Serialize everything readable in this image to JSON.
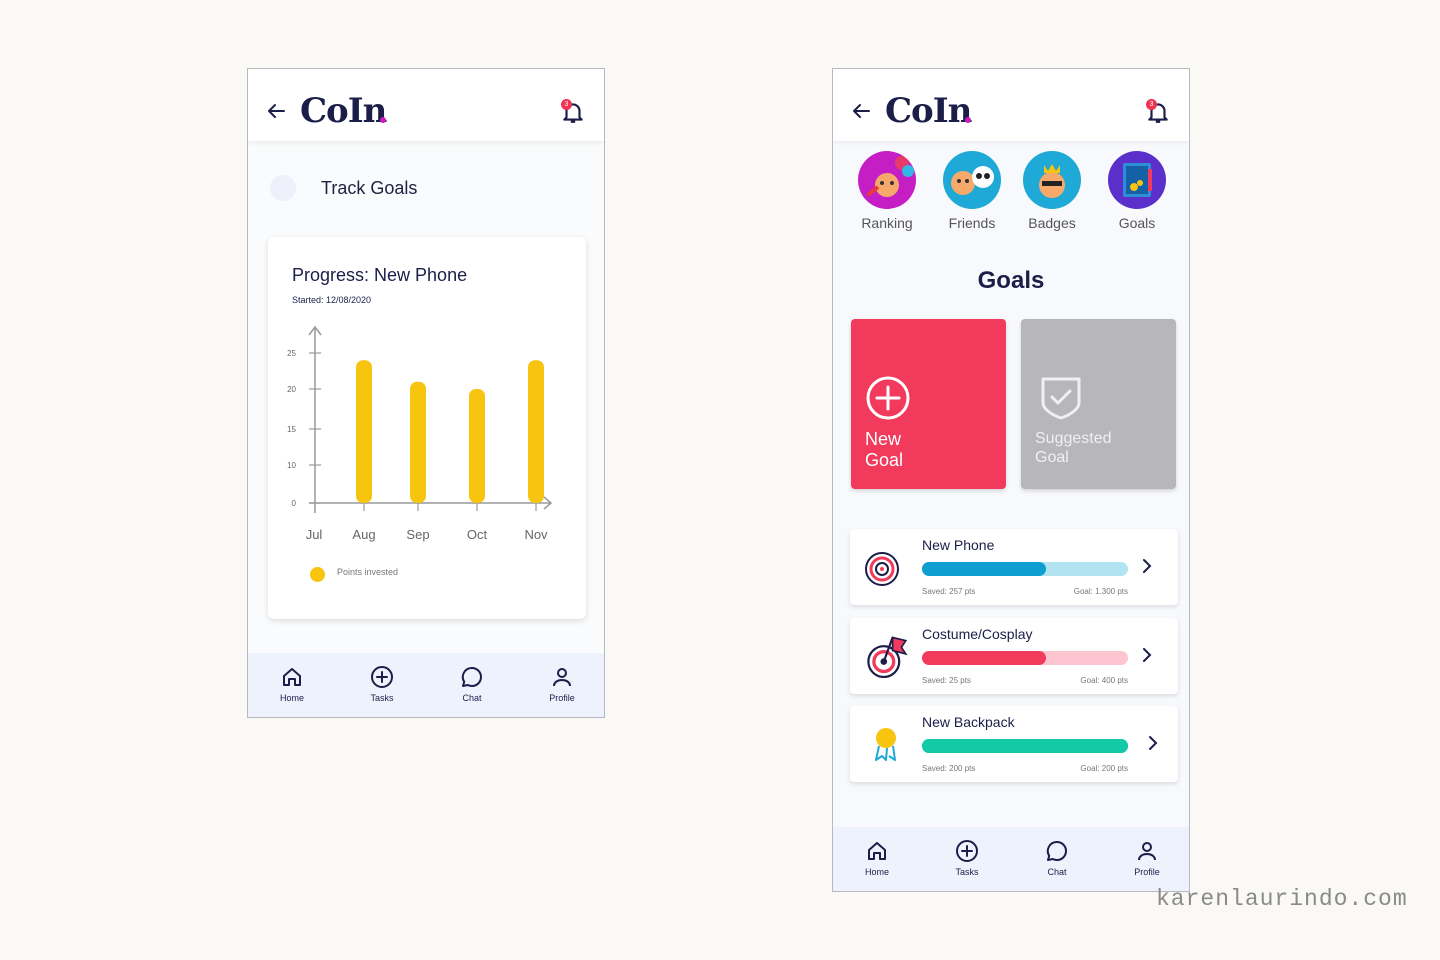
{
  "brand": {
    "logo_text": "CoIn",
    "notification_count": "3"
  },
  "screen_track": {
    "section_title": "Track Goals",
    "chart_title": "Progress: New Phone",
    "chart_subtitle": "Started: 12/08/2020",
    "legend_label": "Points invested"
  },
  "chart_data": {
    "type": "bar",
    "categories": [
      "Jul",
      "Aug",
      "Sep",
      "Oct",
      "Nov"
    ],
    "series": [
      {
        "name": "Points invested",
        "values": [
          0,
          24,
          21,
          20,
          24
        ],
        "color": "#f7c40f"
      }
    ],
    "yticks": [
      "0",
      "10",
      "15",
      "20",
      "25"
    ],
    "ylim": [
      0,
      25
    ],
    "title": "Progress: New Phone",
    "subtitle": "Started: 12/08/2020",
    "grid": false,
    "legend_position": "bottom-left"
  },
  "tabbar": {
    "items": [
      {
        "label": "Home",
        "icon": "home-icon"
      },
      {
        "label": "Tasks",
        "icon": "plus-circle-icon"
      },
      {
        "label": "Chat",
        "icon": "chat-icon"
      },
      {
        "label": "Profile",
        "icon": "user-icon"
      }
    ]
  },
  "screen_goals": {
    "categories": [
      {
        "label": "Ranking",
        "icon": "ranking-character-icon",
        "color": "#c41ec4"
      },
      {
        "label": "Friends",
        "icon": "friends-character-icon",
        "color": "#1fa9d6"
      },
      {
        "label": "Badges",
        "icon": "badges-character-icon",
        "color": "#1fa9d6"
      },
      {
        "label": "Goals",
        "icon": "goals-safe-icon",
        "color": "#5b2fc9"
      }
    ],
    "heading": "Goals",
    "tiles": {
      "new_goal": {
        "line1": "New",
        "line2": "Goal",
        "color": "#f23a5c"
      },
      "suggested_goal": {
        "line1": "Suggested",
        "line2": "Goal",
        "color": "#b6b6bb"
      }
    },
    "goals": [
      {
        "name": "New Phone",
        "saved": "Saved: 257 pts",
        "goal": "Goal: 1.300 pts",
        "progress": 0.6,
        "fill_color": "#0e9ed0",
        "track_color": "#b2e3f1",
        "icon": "target-icon"
      },
      {
        "name": "Costume/Cosplay",
        "saved": "Saved: 25 pts",
        "goal": "Goal: 400 pts",
        "progress": 0.6,
        "fill_color": "#f23a5c",
        "track_color": "#fcc5d0",
        "icon": "target-flag-icon"
      },
      {
        "name": "New Backpack",
        "saved": "Saved: 200 pts",
        "goal": "Goal: 200 pts",
        "progress": 1.0,
        "fill_color": "#14c9a6",
        "track_color": "#14c9a6",
        "icon": "medal-icon"
      }
    ]
  },
  "watermark": "karenlaurindo.com"
}
